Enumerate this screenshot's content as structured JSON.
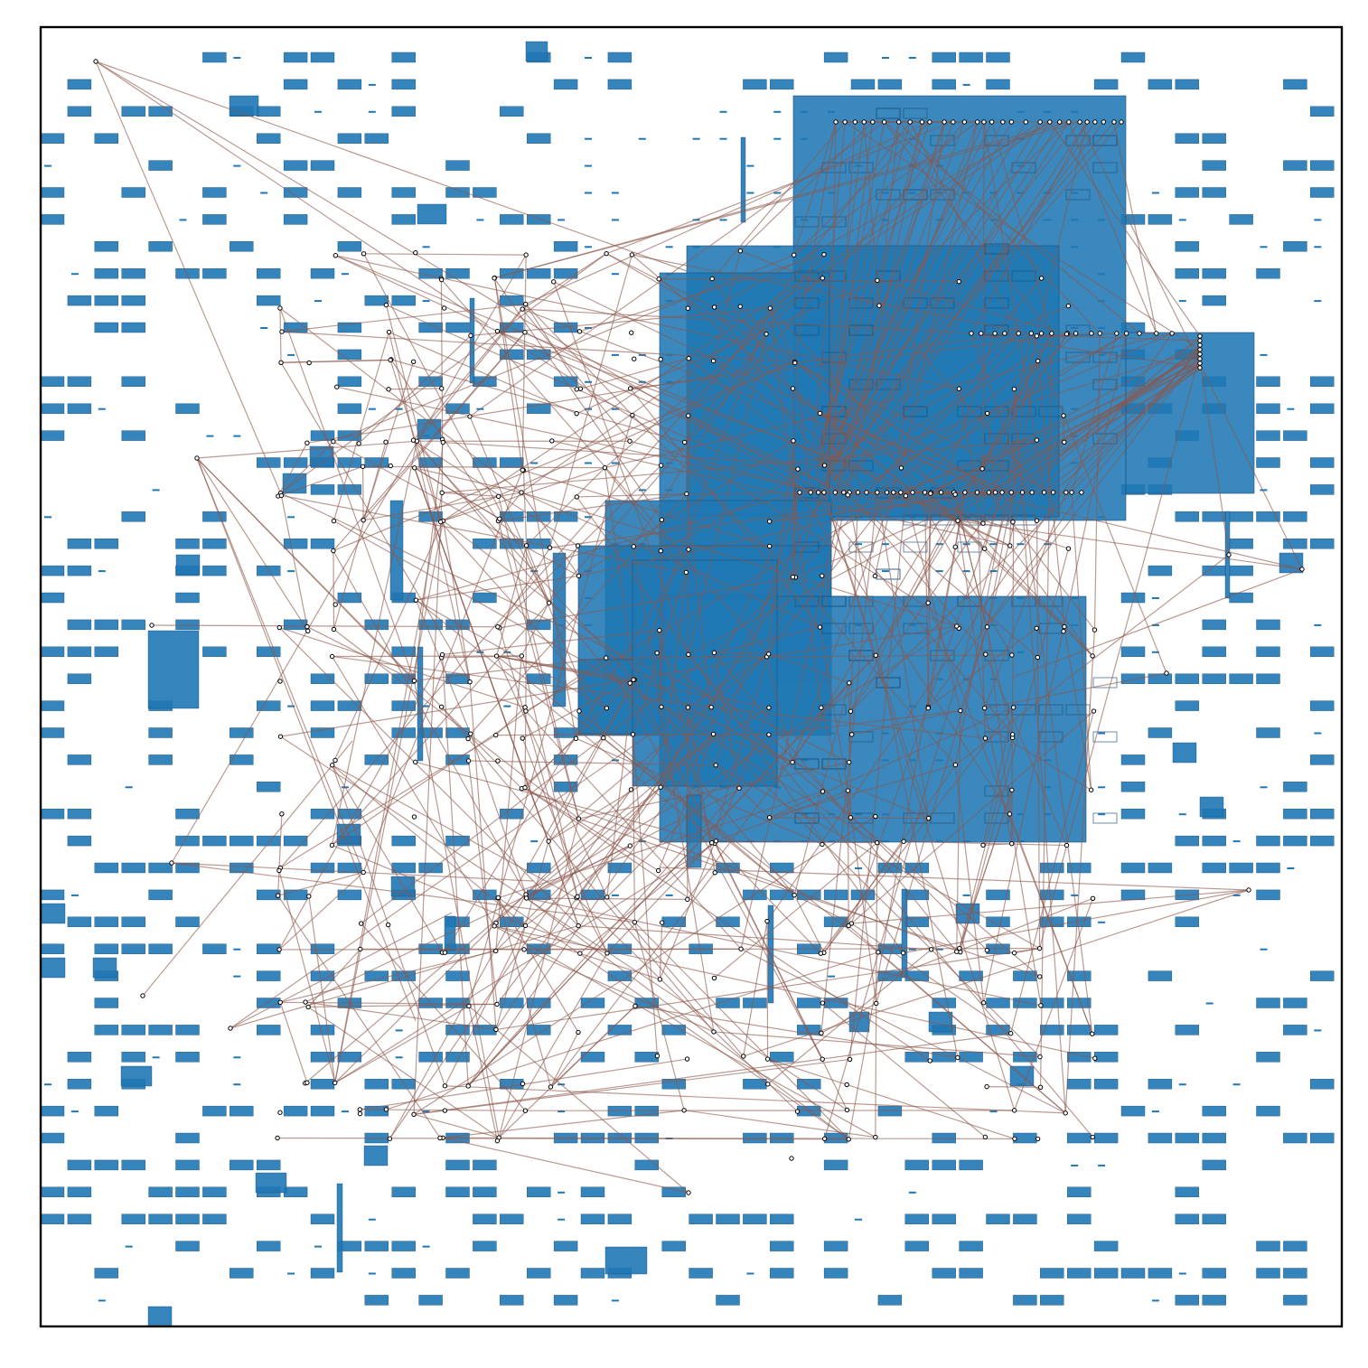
{
  "colors": {
    "block_fill": "#1f77b4",
    "block_edge": "#1a4f7a",
    "net_line": "#8c564b",
    "pin": "#000000",
    "frame": "#000000",
    "background": "#ffffff"
  },
  "diagram": {
    "type": "placement-layout",
    "title": "",
    "xlabel": "",
    "ylabel": "",
    "axes_ticks": false,
    "grid": false,
    "legend": "none",
    "element_kinds": [
      "macro-block",
      "standard-cell",
      "net",
      "pin"
    ]
  }
}
